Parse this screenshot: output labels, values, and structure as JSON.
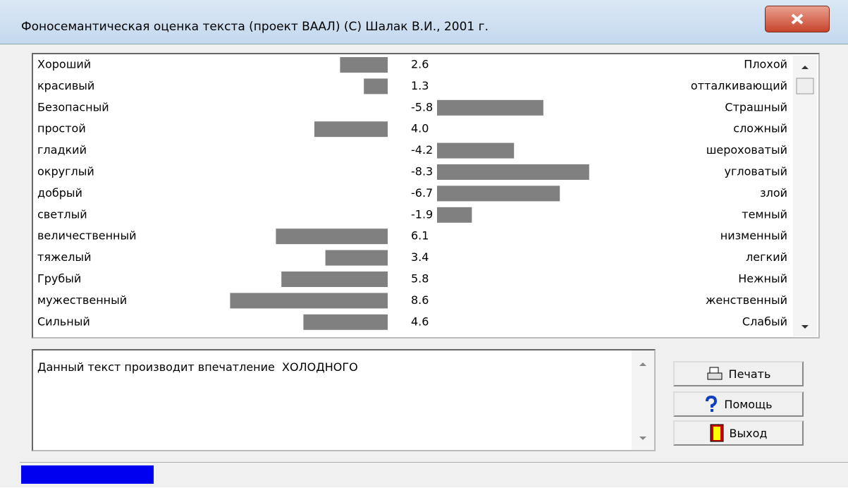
{
  "window": {
    "title": "Фоносемантическая оценка текста (проект ВААЛ) (С) Шалак В.И., 2001 г."
  },
  "scales": {
    "left_labels": [
      "Хороший",
      "красивый",
      "Безопасный",
      "простой",
      "гладкий",
      "округлый",
      "добрый",
      "светлый",
      "величественный",
      "тяжелый",
      "Грубый",
      "мужественный",
      "Сильный"
    ],
    "right_labels": [
      "Плохой",
      "отталкивающий",
      "Страшный",
      "сложный",
      "шероховатый",
      "угловатый",
      "злой",
      "темный",
      "низменный",
      "легкий",
      "Нежный",
      "женственный",
      "Слабый"
    ],
    "values": [
      2.6,
      1.3,
      -5.8,
      4.0,
      -4.2,
      -8.3,
      -6.7,
      -1.9,
      6.1,
      3.4,
      5.8,
      8.6,
      4.6
    ],
    "value_labels": [
      "2.6",
      "1.3",
      "-5.8",
      "4.0",
      "-4.2",
      "-8.3",
      "-6.7",
      "-1.9",
      "6.1",
      "3.4",
      "5.8",
      "8.6",
      "4.6"
    ]
  },
  "message": "Данный текст производит впечатление  ХОЛОДНОГО",
  "buttons": [
    "Печать",
    "Помощь",
    "Выход"
  ]
}
